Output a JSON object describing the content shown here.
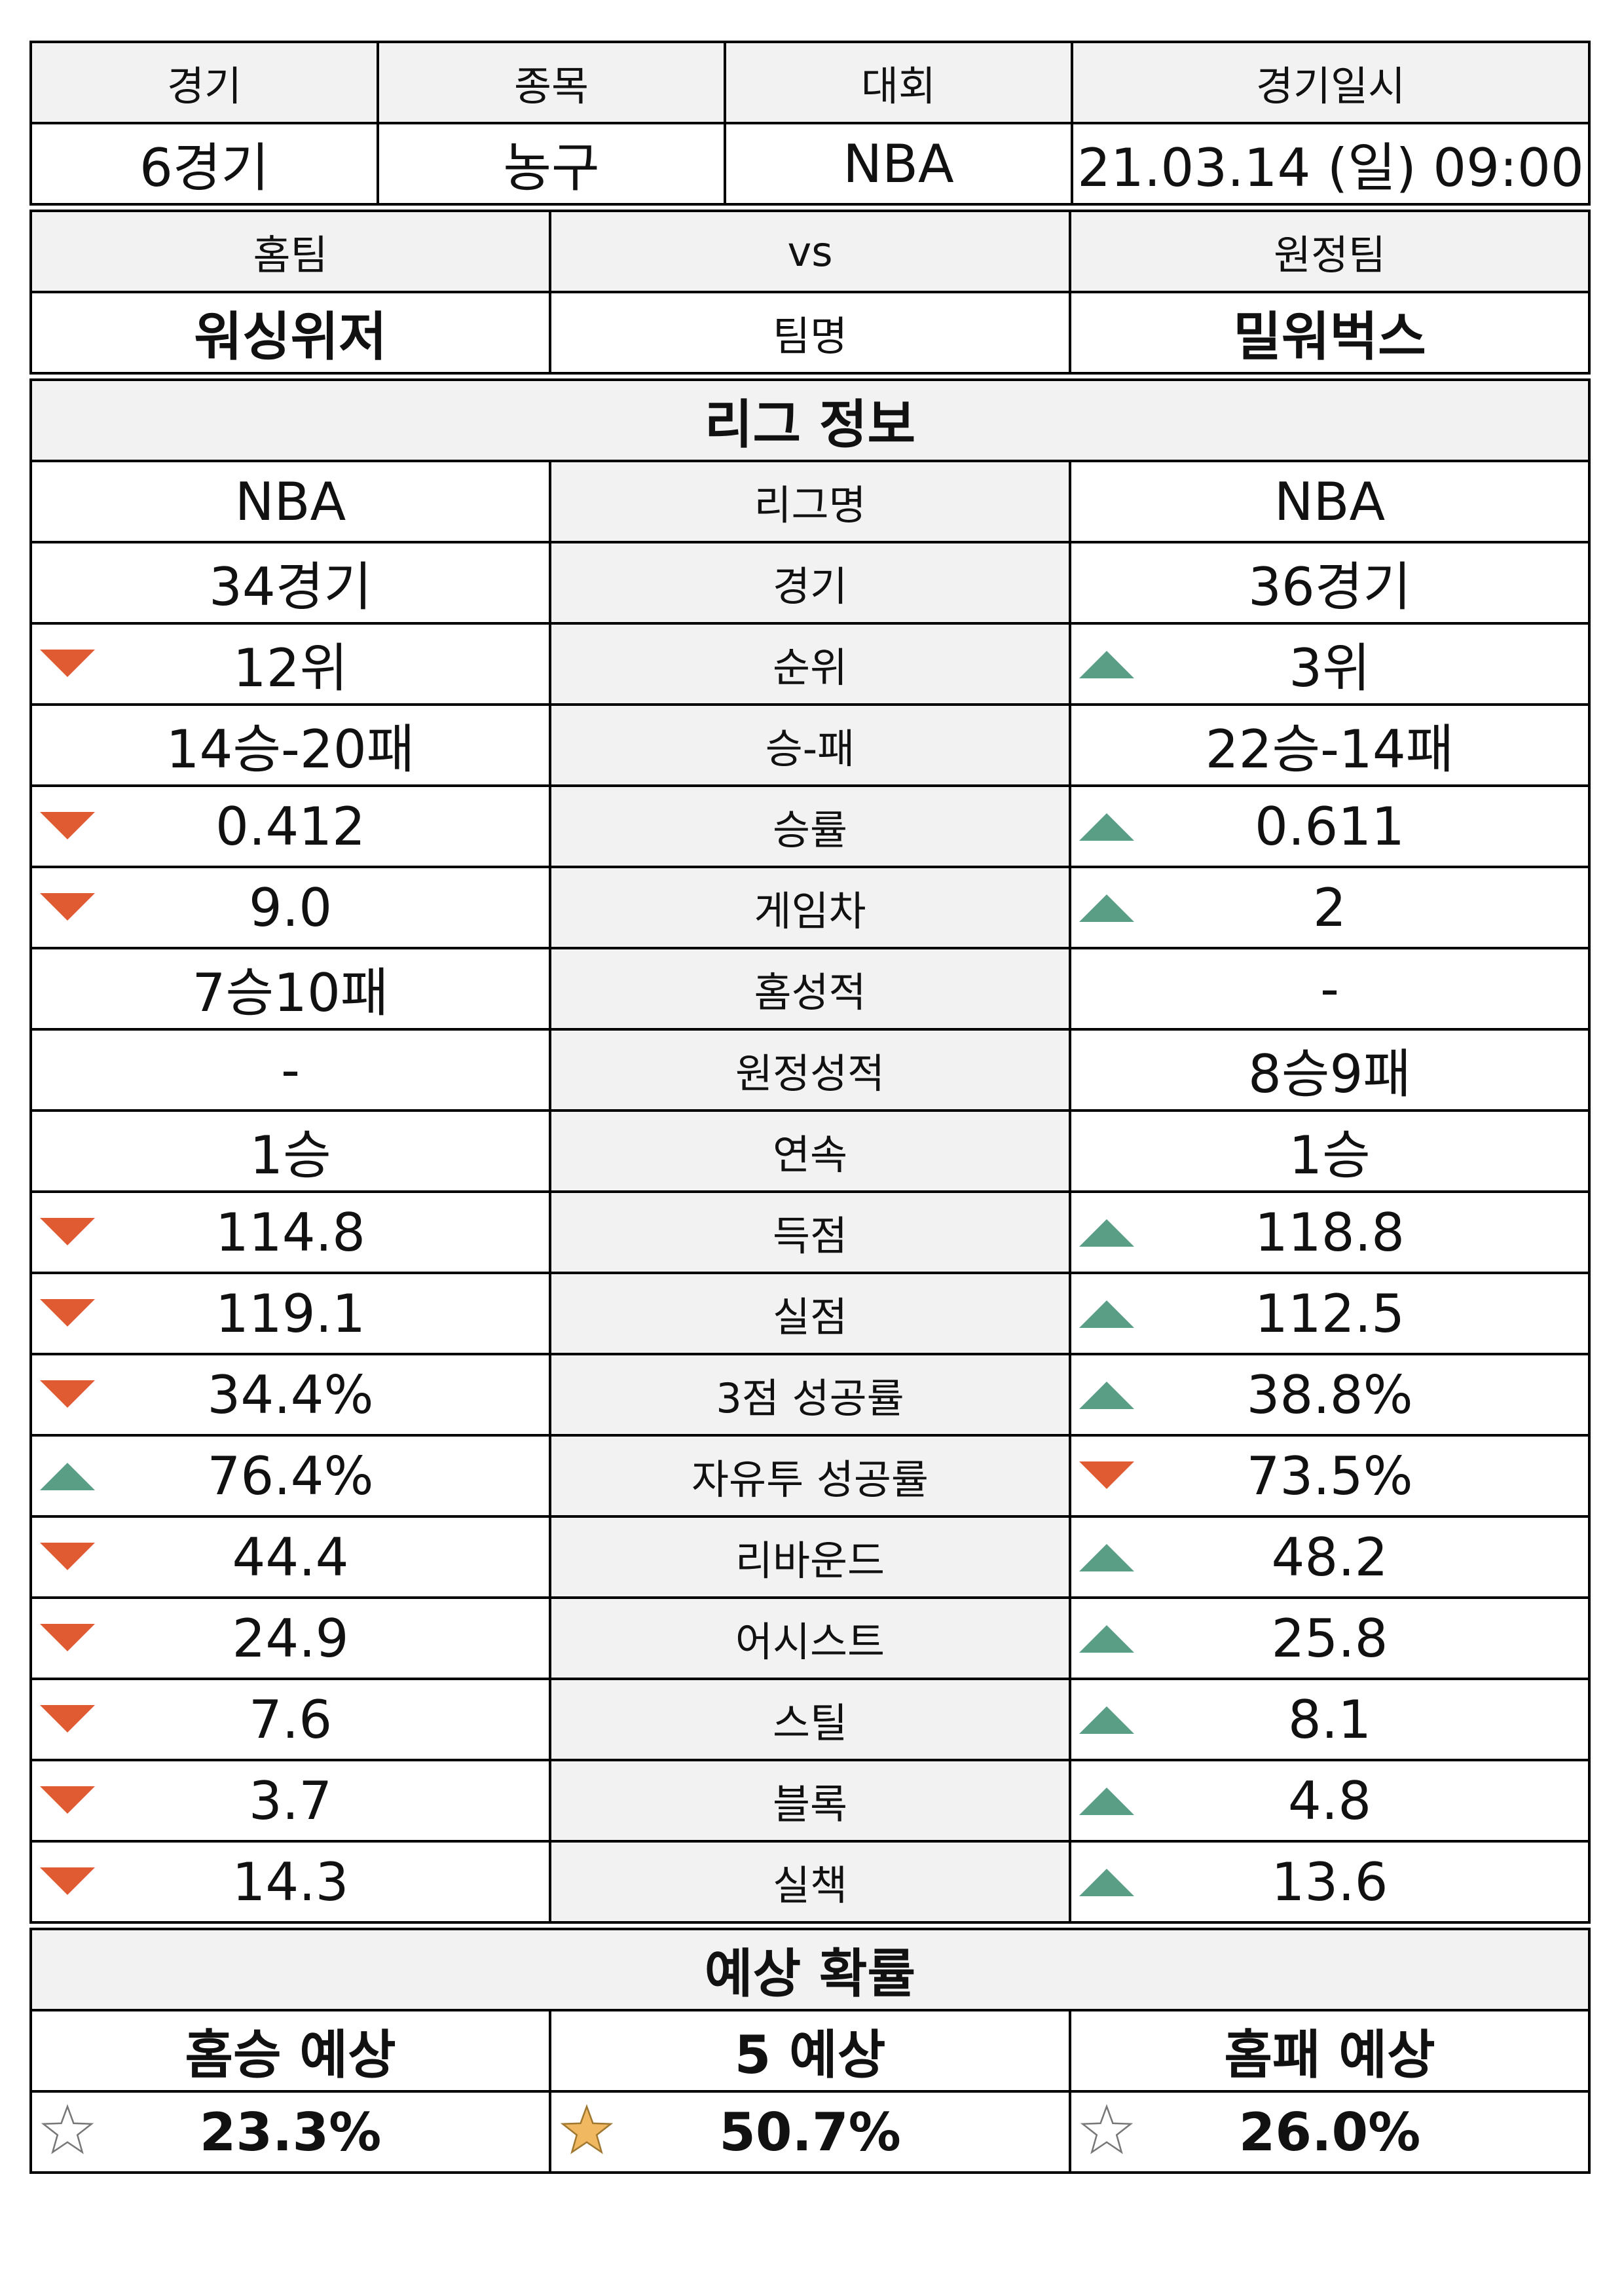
{
  "match": {
    "headers": [
      "경기",
      "종목",
      "대회",
      "경기일시"
    ],
    "values": [
      "6경기",
      "농구",
      "NBA",
      "21.03.14 (일) 09:00"
    ]
  },
  "teams": {
    "home_label": "홈팀",
    "vs_label": "vs",
    "away_label": "원정팀",
    "home_name": "워싱위저",
    "name_label": "팀명",
    "away_name": "밀워벅스"
  },
  "league": {
    "title": "리그 정보",
    "rows": [
      {
        "home": "NBA",
        "label": "리그명",
        "away": "NBA",
        "home_trend": "",
        "away_trend": ""
      },
      {
        "home": "34경기",
        "label": "경기",
        "away": "36경기",
        "home_trend": "",
        "away_trend": ""
      },
      {
        "home": "12위",
        "label": "순위",
        "away": "3위",
        "home_trend": "down",
        "away_trend": "up"
      },
      {
        "home": "14승-20패",
        "label": "승-패",
        "away": "22승-14패",
        "home_trend": "",
        "away_trend": ""
      },
      {
        "home": "0.412",
        "label": "승률",
        "away": "0.611",
        "home_trend": "down",
        "away_trend": "up"
      },
      {
        "home": "9.0",
        "label": "게임차",
        "away": "2",
        "home_trend": "down",
        "away_trend": "up"
      },
      {
        "home": "7승10패",
        "label": "홈성적",
        "away": "-",
        "home_trend": "",
        "away_trend": ""
      },
      {
        "home": "-",
        "label": "원정성적",
        "away": "8승9패",
        "home_trend": "",
        "away_trend": ""
      },
      {
        "home": "1승",
        "label": "연속",
        "away": "1승",
        "home_trend": "",
        "away_trend": ""
      },
      {
        "home": "114.8",
        "label": "득점",
        "away": "118.8",
        "home_trend": "down",
        "away_trend": "up"
      },
      {
        "home": "119.1",
        "label": "실점",
        "away": "112.5",
        "home_trend": "down",
        "away_trend": "up"
      },
      {
        "home": "34.4%",
        "label": "3점 성공률",
        "away": "38.8%",
        "home_trend": "down",
        "away_trend": "up"
      },
      {
        "home": "76.4%",
        "label": "자유투 성공률",
        "away": "73.5%",
        "home_trend": "up",
        "away_trend": "down"
      },
      {
        "home": "44.4",
        "label": "리바운드",
        "away": "48.2",
        "home_trend": "down",
        "away_trend": "up"
      },
      {
        "home": "24.9",
        "label": "어시스트",
        "away": "25.8",
        "home_trend": "down",
        "away_trend": "up"
      },
      {
        "home": "7.6",
        "label": "스틸",
        "away": "8.1",
        "home_trend": "down",
        "away_trend": "up"
      },
      {
        "home": "3.7",
        "label": "블록",
        "away": "4.8",
        "home_trend": "down",
        "away_trend": "up"
      },
      {
        "home": "14.3",
        "label": "실책",
        "away": "13.6",
        "home_trend": "down",
        "away_trend": "up"
      }
    ]
  },
  "prediction": {
    "title": "예상 확률",
    "labels": [
      "홈승 예상",
      "5 예상",
      "홈패 예상"
    ],
    "values": [
      "23.3%",
      "50.7%",
      "26.0%"
    ],
    "stars": [
      "empty",
      "filled",
      "empty"
    ]
  },
  "colors": {
    "header_bg": "#f2f2f2",
    "down_arrow": "#e05a32",
    "up_arrow": "#5a9e86",
    "star_fill": "#f0b860"
  }
}
